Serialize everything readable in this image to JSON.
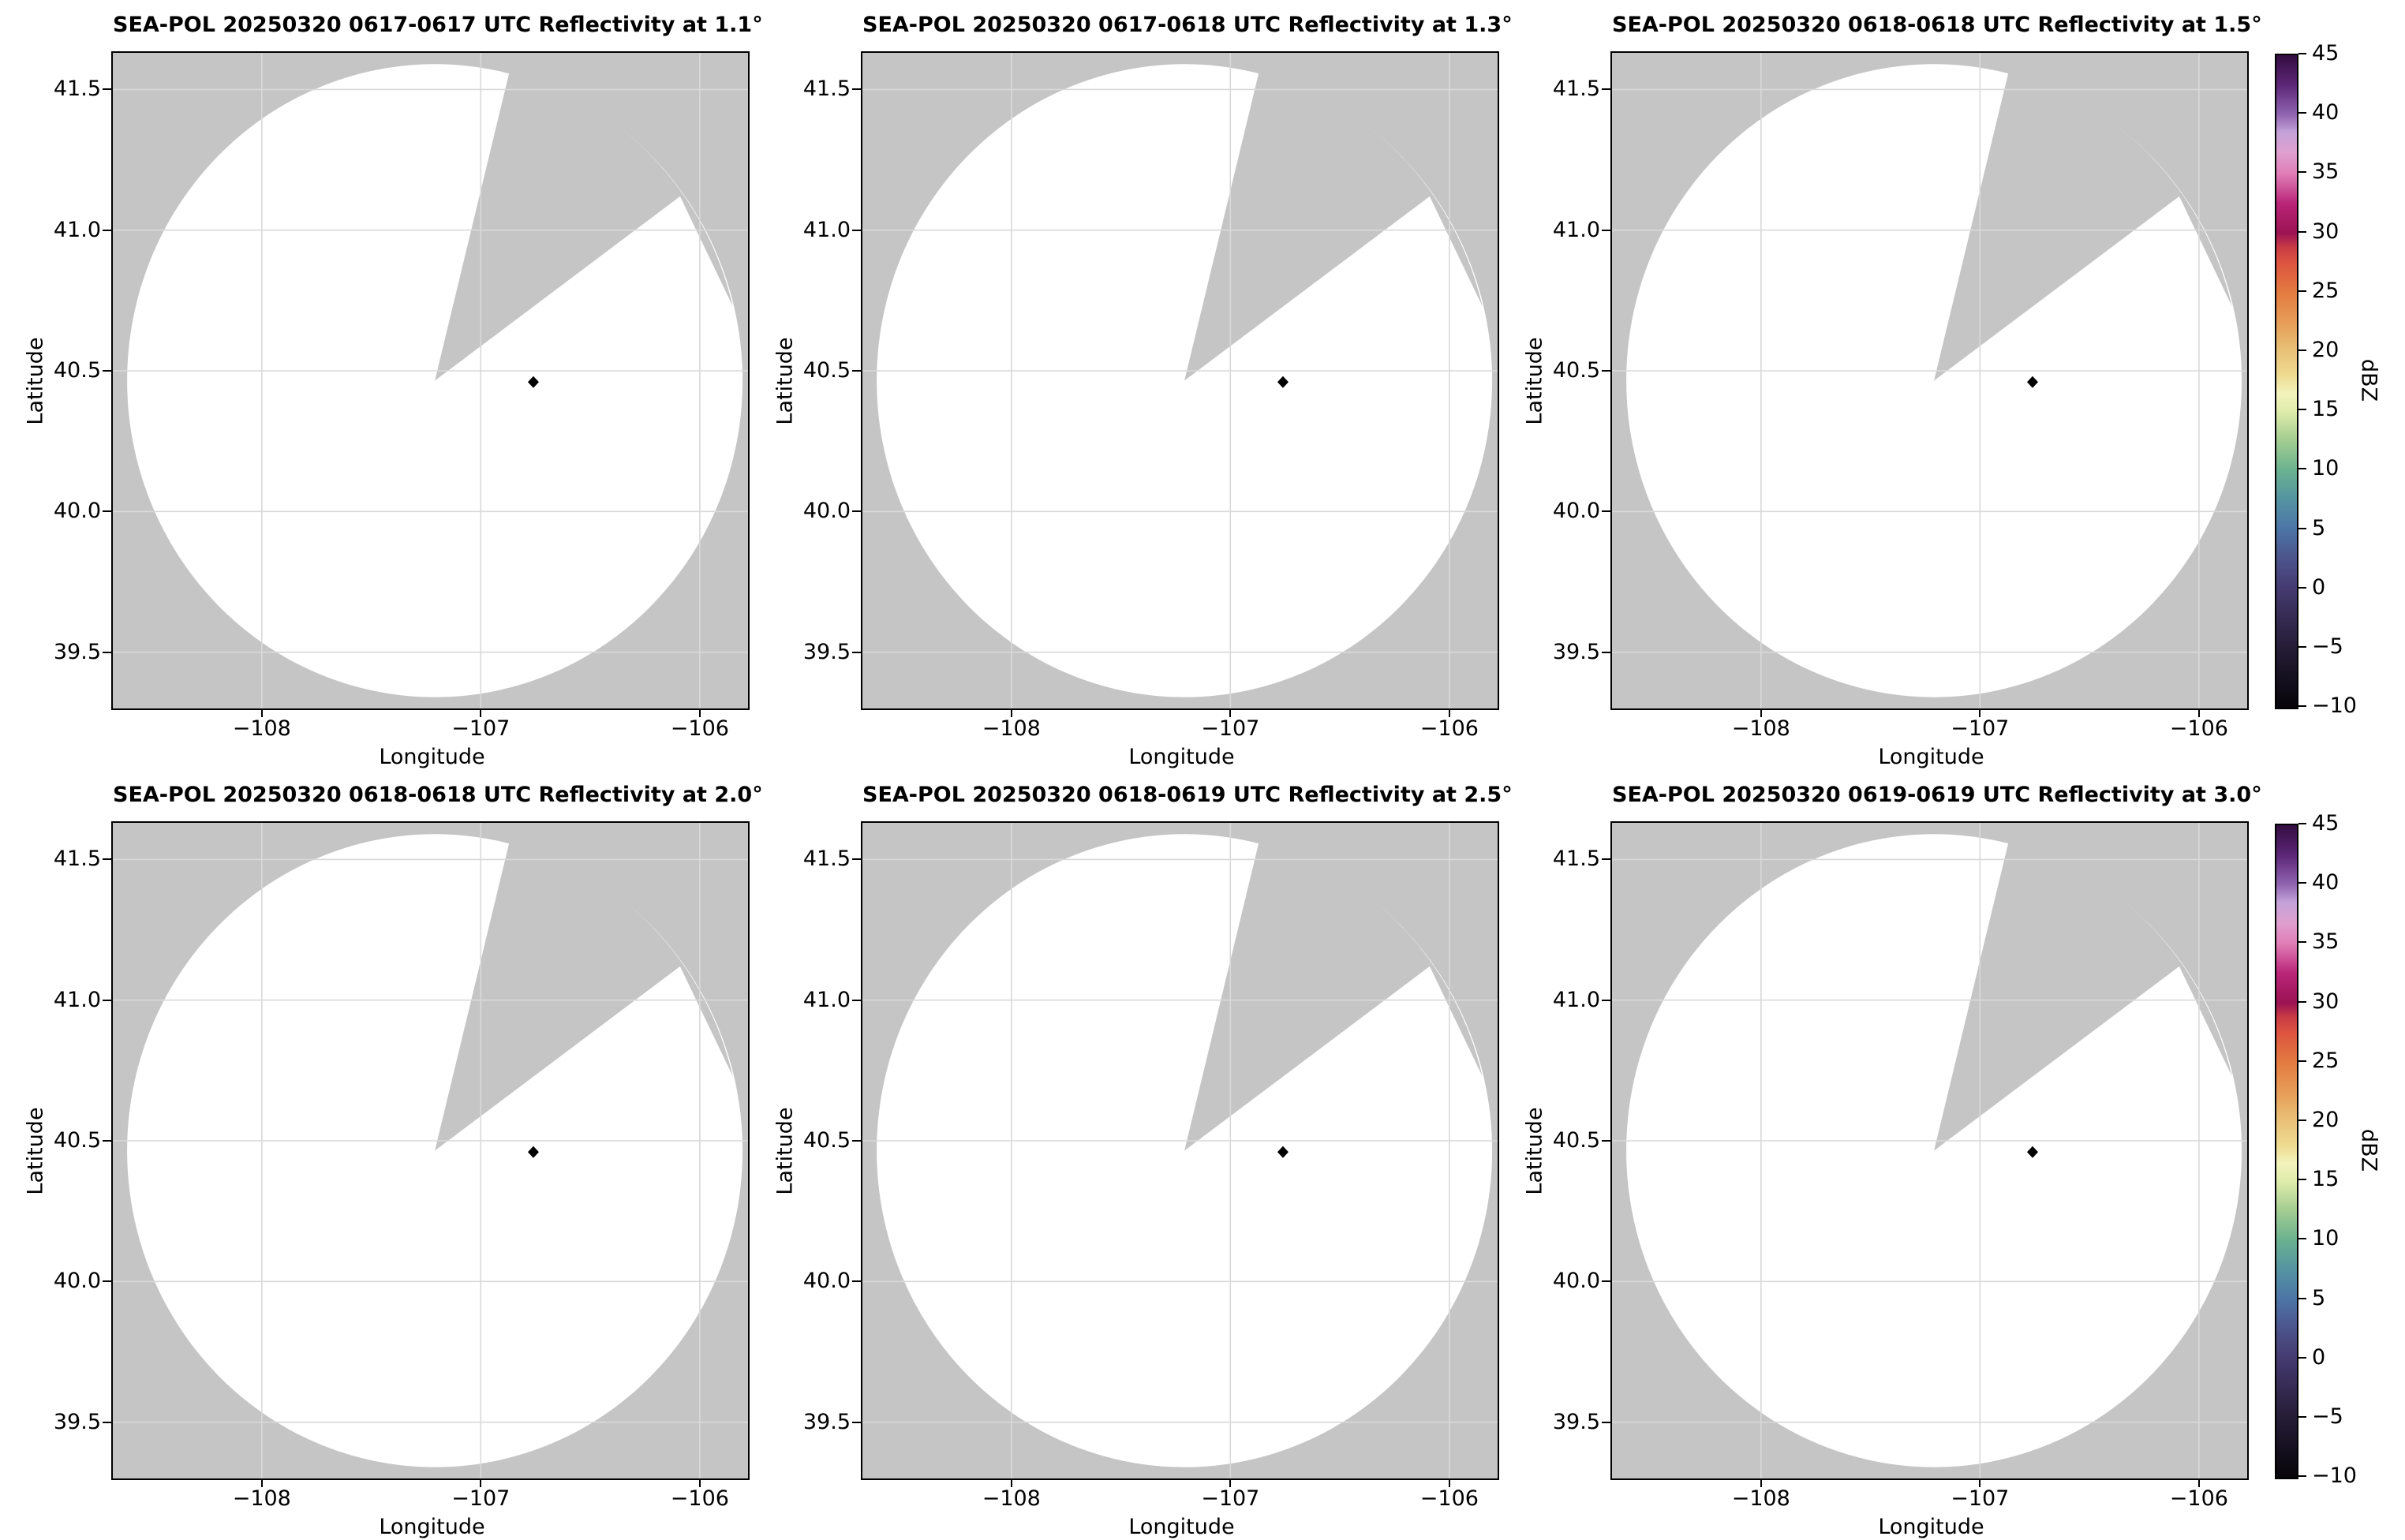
{
  "chart_data": {
    "type": "heatmap",
    "description": "2x3 grid of SEA-POL radar PPI reflectivity maps; white circular radar coverage area with a gray missing-data sector over a gray background; no echoes above -10 dBZ visible; black diamond marks a site inside the scan.",
    "panels": [
      {
        "title": "SEA-POL 20250320 0617-0617 UTC Reflectivity at 1.1°",
        "date": "20250320",
        "time_utc": "0617-0617",
        "elevation_deg": 1.1
      },
      {
        "title": "SEA-POL 20250320 0617-0618 UTC Reflectivity at 1.3°",
        "date": "20250320",
        "time_utc": "0617-0618",
        "elevation_deg": 1.3
      },
      {
        "title": "SEA-POL 20250320 0618-0618 UTC Reflectivity at 1.5°",
        "date": "20250320",
        "time_utc": "0618-0618",
        "elevation_deg": 1.5
      },
      {
        "title": "SEA-POL 20250320 0618-0618 UTC Reflectivity at 2.0°",
        "date": "20250320",
        "time_utc": "0618-0618",
        "elevation_deg": 2.0
      },
      {
        "title": "SEA-POL 20250320 0618-0619 UTC Reflectivity at 2.5°",
        "date": "20250320",
        "time_utc": "0618-0619",
        "elevation_deg": 2.5
      },
      {
        "title": "SEA-POL 20250320 0619-0619 UTC Reflectivity at 3.0°",
        "date": "20250320",
        "time_utc": "0619-0619",
        "elevation_deg": 3.0
      }
    ],
    "axes": {
      "xlabel": "Longitude",
      "ylabel": "Latitude",
      "xlim": [
        -108.68,
        -105.78
      ],
      "ylim": [
        39.3,
        41.63
      ],
      "xticks": [
        {
          "value": -108,
          "label": "−108"
        },
        {
          "value": -107,
          "label": "−107"
        },
        {
          "value": -106,
          "label": "−106"
        }
      ],
      "yticks": [
        {
          "value": 41.5,
          "label": "41.5"
        },
        {
          "value": 41.0,
          "label": "41.0"
        },
        {
          "value": 40.5,
          "label": "40.5"
        },
        {
          "value": 40.0,
          "label": "40.0"
        },
        {
          "value": 39.5,
          "label": "39.5"
        }
      ],
      "grid": true
    },
    "radar_geometry": {
      "coverage_center_lonlat": [
        -107.21,
        40.465
      ],
      "coverage_radius_lon_deg": 1.405,
      "coverage_radius_lat_deg": 1.125,
      "missing_sector": {
        "apex_lonlat": [
          -107.21,
          40.465
        ],
        "left_edge_exit_lonlat": [
          -106.87,
          41.56
        ],
        "inner_peak_lonlat": [
          -106.09,
          41.12
        ],
        "right_edge_exit_lonlat": [
          -105.85,
          40.73
        ]
      },
      "site_marker_lonlat": [
        -106.76,
        40.46
      ]
    },
    "colorbar": {
      "label": "dBZ",
      "vmin": -10,
      "vmax": 45,
      "ticks": [
        {
          "value": 45,
          "label": "45"
        },
        {
          "value": 40,
          "label": "40"
        },
        {
          "value": 35,
          "label": "35"
        },
        {
          "value": 30,
          "label": "30"
        },
        {
          "value": 25,
          "label": "25"
        },
        {
          "value": 20,
          "label": "20"
        },
        {
          "value": 15,
          "label": "15"
        },
        {
          "value": 10,
          "label": "10"
        },
        {
          "value": 5,
          "label": "5"
        },
        {
          "value": 0,
          "label": "0"
        },
        {
          "value": -5,
          "label": "−5"
        },
        {
          "value": -10,
          "label": "−10"
        }
      ],
      "gradient_stops": [
        {
          "v": -10,
          "c": "#07050a"
        },
        {
          "v": -7.5,
          "c": "#15101f"
        },
        {
          "v": -5,
          "c": "#251c36"
        },
        {
          "v": -2.5,
          "c": "#352a51"
        },
        {
          "v": 0,
          "c": "#443a6f"
        },
        {
          "v": 2.5,
          "c": "#4c538b"
        },
        {
          "v": 5,
          "c": "#4c74a6"
        },
        {
          "v": 7.5,
          "c": "#5493a2"
        },
        {
          "v": 10,
          "c": "#6ab190"
        },
        {
          "v": 12.5,
          "c": "#a2cc90"
        },
        {
          "v": 15,
          "c": "#dfecab"
        },
        {
          "v": 16.5,
          "c": "#f3f3bc"
        },
        {
          "v": 18,
          "c": "#eedb91"
        },
        {
          "v": 20,
          "c": "#e9c278"
        },
        {
          "v": 22.5,
          "c": "#e79d57"
        },
        {
          "v": 25,
          "c": "#e37b41"
        },
        {
          "v": 27.5,
          "c": "#dd5440"
        },
        {
          "v": 28.8,
          "c": "#c93c45"
        },
        {
          "v": 30,
          "c": "#9b1353"
        },
        {
          "v": 32.5,
          "c": "#b92578"
        },
        {
          "v": 35,
          "c": "#e07db6"
        },
        {
          "v": 36.8,
          "c": "#dfa0cf"
        },
        {
          "v": 38.5,
          "c": "#c3a2d8"
        },
        {
          "v": 40,
          "c": "#9064b0"
        },
        {
          "v": 42.5,
          "c": "#5c2677"
        },
        {
          "v": 45,
          "c": "#330d41"
        }
      ]
    },
    "colors": {
      "background": "#ffffff",
      "plot_background": "#c5c5c5",
      "scan_area": "#ffffff",
      "grid_line": "#d9d9d9",
      "spine": "#000000",
      "marker": "#000000",
      "text": "#000000"
    }
  }
}
